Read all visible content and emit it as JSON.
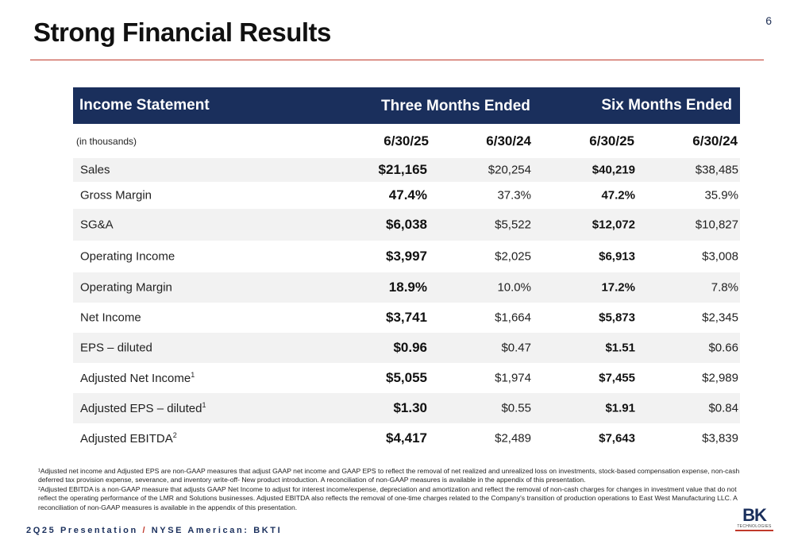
{
  "title": "Strong Financial Results",
  "page_number": "6",
  "table": {
    "header": {
      "col0": "Income Statement",
      "col_group1": "Three Months Ended",
      "col_group2": "Six Months Ended"
    },
    "subheader": {
      "label": "(in thousands)",
      "dates": [
        "6/30/25",
        "6/30/24",
        "6/30/25",
        "6/30/24"
      ]
    },
    "rows": [
      {
        "label": "Sales",
        "sup": "",
        "values": [
          "$21,165",
          "$20,254",
          "$40,219",
          "$38,485"
        ]
      },
      {
        "label": "Gross Margin",
        "sup": "",
        "values": [
          "47.4%",
          "37.3%",
          "47.2%",
          "35.9%"
        ]
      },
      {
        "label": "SG&A",
        "sup": "",
        "values": [
          "$6,038",
          "$5,522",
          "$12,072",
          "$10,827"
        ]
      },
      {
        "label": "Operating Income",
        "sup": "",
        "values": [
          "$3,997",
          "$2,025",
          "$6,913",
          "$3,008"
        ]
      },
      {
        "label": "Operating Margin",
        "sup": "",
        "values": [
          "18.9%",
          "10.0%",
          "17.2%",
          "7.8%"
        ]
      },
      {
        "label": "Net Income",
        "sup": "",
        "values": [
          "$3,741",
          "$1,664",
          "$5,873",
          "$2,345"
        ]
      },
      {
        "label": "EPS – diluted",
        "sup": "",
        "values": [
          "$0.96",
          "$0.47",
          "$1.51",
          "$0.66"
        ]
      },
      {
        "label": "Adjusted Net Income",
        "sup": "1",
        "values": [
          "$5,055",
          "$1,974",
          "$7,455",
          "$2,989"
        ]
      },
      {
        "label": "Adjusted EPS – diluted",
        "sup": "1",
        "values": [
          "$1.30",
          "$0.55",
          "$1.91",
          "$0.84"
        ]
      },
      {
        "label": "Adjusted EBITDA",
        "sup": "2",
        "values": [
          "$4,417",
          "$2,489",
          "$7,643",
          "$3,839"
        ]
      }
    ]
  },
  "footnotes": {
    "note1": "¹Adjusted net income and Adjusted EPS are non-GAAP measures that adjust GAAP net income and GAAP EPS to reflect the removal of net realized and unrealized loss on investments, stock-based compensation expense, non-cash deferred tax provision expense, severance, and inventory write-off- New product introduction. A reconciliation of non-GAAP measures is available in the appendix of this presentation.",
    "note2": "²Adjusted EBITDA is a non-GAAP measure that adjusts GAAP Net Income to adjust for interest income/expense, depreciation and amortization and reflect the removal of non-cash charges for changes in investment value that do not reflect the operating performance of the LMR and Solutions businesses. Adjusted EBITDA also reflects the removal of one-time charges related to the Company's transition of production operations to East West Manufacturing LLC. A reconciliation of non-GAAP measures is available in the appendix of this presentation."
  },
  "footer": {
    "left": "2Q25 Presentation",
    "slash": "/",
    "right": "NYSE American: BKTI"
  },
  "logo": {
    "mark": "BK",
    "tagline": "TECHNOLOGIES"
  },
  "colors": {
    "header_bg": "#1a2f5c",
    "accent_red": "#c0392b",
    "alt_row_bg": "#f2f2f2"
  }
}
